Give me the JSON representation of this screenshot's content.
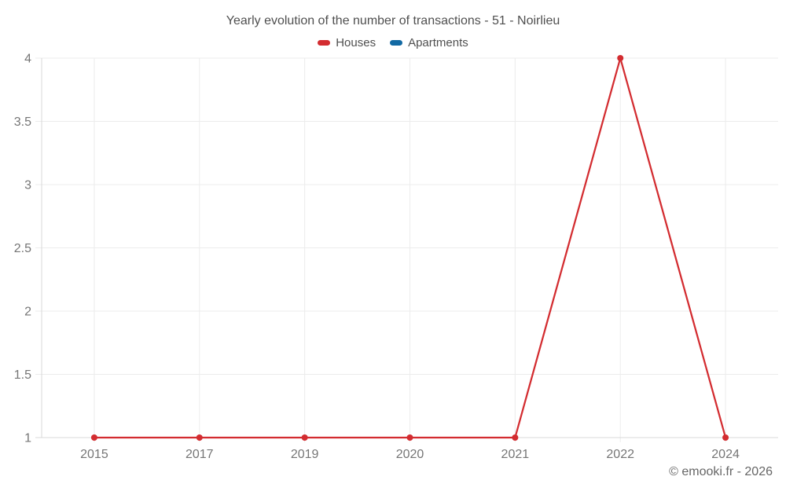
{
  "title": "Yearly evolution of the number of transactions - 51 - Noirlieu",
  "legend": [
    {
      "label": "Houses",
      "color": "#d32c30"
    },
    {
      "label": "Apartments",
      "color": "#1269a3"
    }
  ],
  "footer": "© emooki.fr - 2026",
  "chart_data": {
    "type": "line",
    "title": "Yearly evolution of the number of transactions - 51 - Noirlieu",
    "categories": [
      "2015",
      "2017",
      "2019",
      "2020",
      "2021",
      "2022",
      "2024"
    ],
    "series": [
      {
        "name": "Houses",
        "color": "#d32c30",
        "values": [
          1,
          1,
          1,
          1,
          1,
          4,
          1
        ]
      },
      {
        "name": "Apartments",
        "color": "#1269a3",
        "values": []
      }
    ],
    "xlabel": "",
    "ylabel": "",
    "ylim": [
      1,
      4
    ],
    "yticks": [
      1,
      1.5,
      2,
      2.5,
      3,
      3.5,
      4
    ],
    "grid": true,
    "legend_position": "top"
  },
  "style": {
    "grid_color": "#ececec",
    "axis_color": "#d9d9d9",
    "tick_text_color": "#757575",
    "title_color": "#4f4f4f",
    "footer_color": "#666666",
    "background": "#ffffff"
  }
}
